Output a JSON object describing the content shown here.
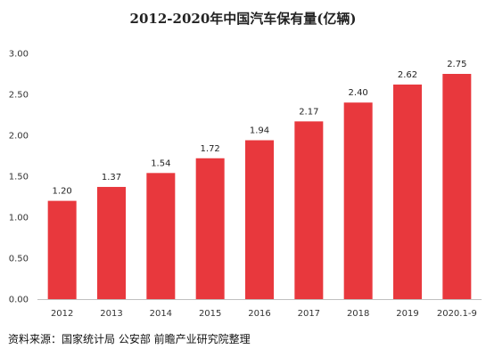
{
  "chart_data": {
    "type": "bar",
    "title": "2012-2020年中国汽车保有量(亿辆)",
    "categories": [
      "2012",
      "2013",
      "2014",
      "2015",
      "2016",
      "2017",
      "2018",
      "2019",
      "2020.1-9"
    ],
    "values": [
      1.2,
      1.37,
      1.54,
      1.72,
      1.94,
      2.17,
      2.4,
      2.62,
      2.75
    ],
    "value_labels": [
      "1.20",
      "1.37",
      "1.54",
      "1.72",
      "1.94",
      "2.17",
      "2.40",
      "2.62",
      "2.75"
    ],
    "ylim": [
      0,
      3
    ],
    "yticks": [
      0,
      0.5,
      1,
      1.5,
      2,
      2.5,
      3
    ],
    "ytick_labels": [
      "0.00",
      "0.50",
      "1.00",
      "1.50",
      "2.00",
      "2.50",
      "3.00"
    ],
    "xlabel": "",
    "ylabel": "",
    "grid": false,
    "bar_color": "#e8383d"
  },
  "source": "资料来源：国家统计局 公安部 前瞻产业研究院整理"
}
